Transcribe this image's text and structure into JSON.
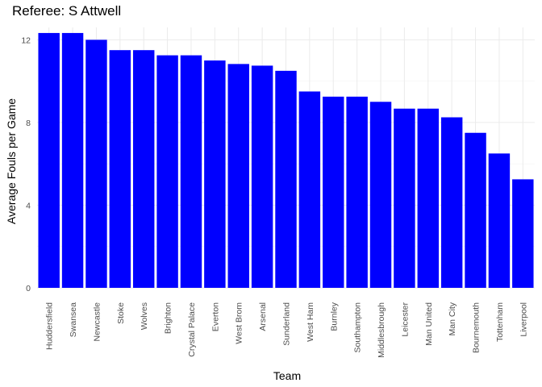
{
  "chart_data": {
    "type": "bar",
    "title": "Referee: S Attwell",
    "xlabel": "Team",
    "ylabel": "Average Fouls per Game",
    "categories": [
      "Huddersfield",
      "Swansea",
      "Newcastle",
      "Stoke",
      "Wolves",
      "Brighton",
      "Crystal Palace",
      "Everton",
      "West Brom",
      "Arsenal",
      "Sunderland",
      "West Ham",
      "Burnley",
      "Southampton",
      "Middlesbrough",
      "Leicester",
      "Man United",
      "Man City",
      "Bournemouth",
      "Tottenham",
      "Liverpool"
    ],
    "values": [
      12.33,
      12.33,
      12.0,
      11.5,
      11.5,
      11.25,
      11.25,
      11.0,
      10.83,
      10.75,
      10.5,
      9.5,
      9.25,
      9.25,
      9.0,
      8.67,
      8.67,
      8.25,
      7.5,
      6.5,
      5.25
    ],
    "ylim": [
      0,
      12.6
    ],
    "yticks": [
      0,
      4,
      8,
      12
    ],
    "bar_color": "#0000ff",
    "grid": true,
    "legend": "none"
  }
}
